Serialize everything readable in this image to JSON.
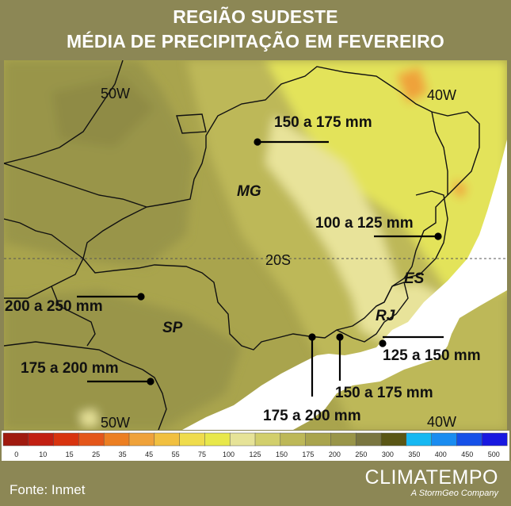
{
  "title": {
    "line1": "REGIÃO SUDESTE",
    "line2": "MÉDIA DE PRECIPITAÇÃO EM FEVEREIRO"
  },
  "map": {
    "grid_labels": {
      "lon_50_top": "50W",
      "lon_40_top": "40W",
      "lat_20": "20S",
      "lon_50_bottom": "50W",
      "lon_40_bottom": "40W"
    },
    "states": {
      "mg": "MG",
      "sp": "SP",
      "rj": "RJ",
      "es": "ES"
    },
    "annotations": {
      "mg_north": "150 a 175 mm",
      "mg_east": "100 a 125 mm",
      "sp_north": "200 a 250 mm",
      "sp_south": "175 a 200 mm",
      "rj_east": "125 a 150 mm",
      "rj_coast_1": "150 a 175 mm",
      "rj_coast_2": "175 a 200 mm"
    },
    "colors": {
      "very_light": "#e8e39a",
      "light_yellow": "#e3e35a",
      "mid_olive": "#bdb858",
      "olive": "#a9a44d",
      "dark_olive": "#999549",
      "sea": "#ffffff"
    }
  },
  "legend": {
    "ticks": [
      "0",
      "10",
      "15",
      "25",
      "35",
      "45",
      "55",
      "75",
      "100",
      "125",
      "150",
      "175",
      "200",
      "250",
      "300",
      "350",
      "400",
      "450",
      "500"
    ],
    "colors": [
      "#a01a0f",
      "#c21f12",
      "#d8340f",
      "#e4561a",
      "#ec7f22",
      "#efa23a",
      "#f1c040",
      "#efdc4c",
      "#e8e84a",
      "#e6e398",
      "#d2cf6c",
      "#bdb858",
      "#a9a44d",
      "#999549",
      "#7a7640",
      "#5a5615",
      "#16b8f2",
      "#1a8cf0",
      "#1550e8",
      "#1818e0"
    ]
  },
  "footer": {
    "source": "Fonte: Inmet",
    "brand": "CLIMATEMPO",
    "tagline": "A StormGeo Company"
  }
}
